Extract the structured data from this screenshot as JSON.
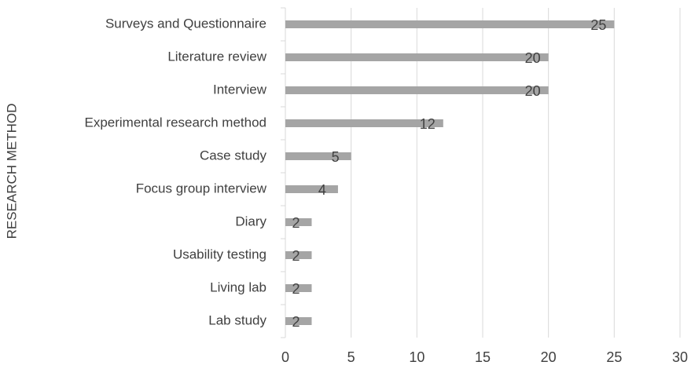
{
  "chart_data": {
    "type": "barh",
    "y_label": "RESEARCH METHOD",
    "categories": [
      "Surveys and Questionnaire",
      "Literature review",
      "Interview",
      "Experimental research method",
      "Case study",
      "Focus group interview",
      "Diary",
      "Usability testing",
      "Living lab",
      "Lab study"
    ],
    "values": [
      25,
      20,
      20,
      12,
      5,
      4,
      2,
      2,
      2,
      2
    ],
    "color": "#a5a5a5",
    "xlim": [
      0,
      30
    ],
    "xticks": [
      0,
      5,
      10,
      15,
      20,
      25,
      30
    ],
    "grid": true
  }
}
